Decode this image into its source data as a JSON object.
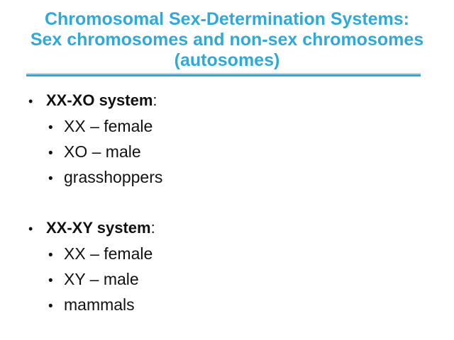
{
  "slide": {
    "title": {
      "lines": [
        "Chromosomal Sex-Determination Systems:",
        "Sex chromosomes and non-sex chromosomes",
        "(autosomes)"
      ],
      "color": "#2fa9d8",
      "rule_color_top": "#a6dcef",
      "rule_color_bottom": "#2fa9d8"
    },
    "bullet_glyph": "•",
    "text_color": "#111111",
    "groups": [
      {
        "header": "XX-XO system",
        "header_suffix": ":",
        "items": [
          "XX – female",
          "XO – male",
          "grasshoppers"
        ]
      },
      {
        "header": "XX-XY system",
        "header_suffix": ":",
        "items": [
          "XX – female",
          "XY – male",
          "mammals"
        ]
      }
    ]
  }
}
